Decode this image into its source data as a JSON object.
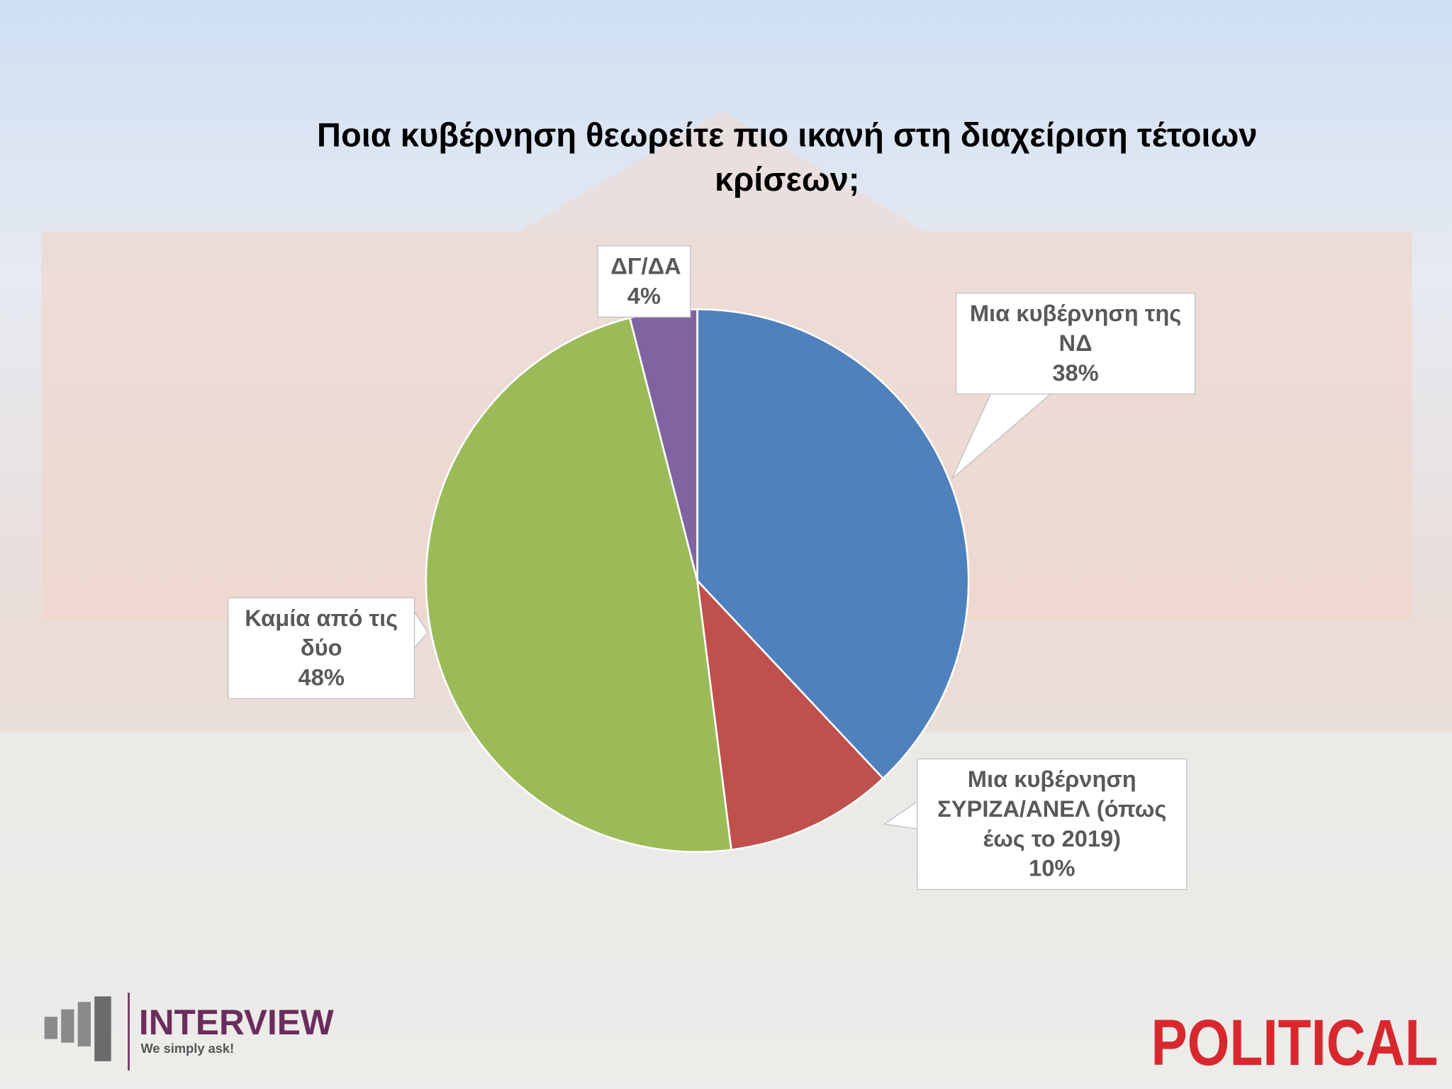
{
  "chart_data": {
    "type": "pie",
    "title": "Ποια κυβέρνηση θεωρείτε πιο ικανή στη διαχείριση τέτοιων κρίσεων;",
    "categories": [
      "Μια κυβέρνηση της ΝΔ",
      "Μια κυβέρνηση ΣΥΡΙΖΑ/ΑΝΕΛ (όπως έως το 2019)",
      "Καμία από τις δύο",
      "ΔΓ/ΔΑ"
    ],
    "values": [
      38,
      10,
      48,
      4
    ],
    "value_labels": [
      "38%",
      "10%",
      "48%",
      "4%"
    ],
    "colors": [
      "#4f81bd",
      "#c0504d",
      "#9bbb59",
      "#8064a2"
    ]
  },
  "branding": {
    "left": "INTERVIEW",
    "left_tagline": "We simply ask!",
    "right": "POLITICAL"
  }
}
